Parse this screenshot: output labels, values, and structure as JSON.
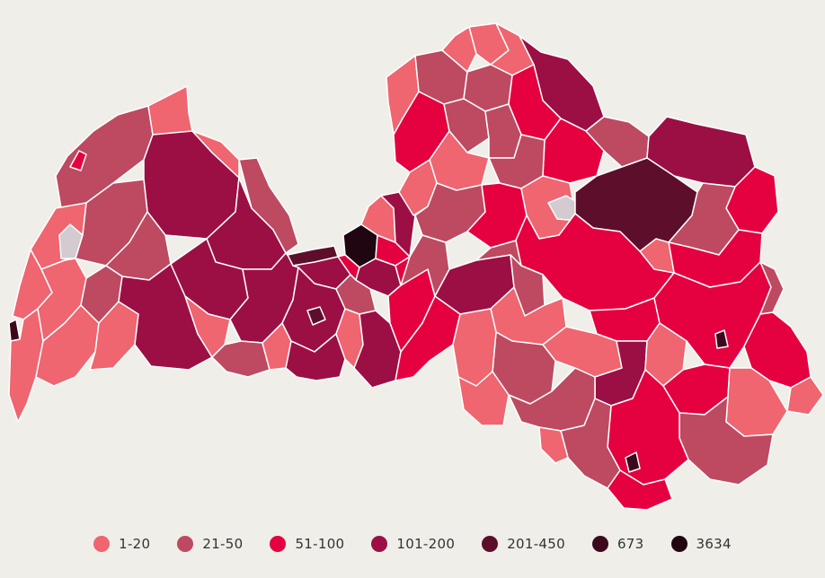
{
  "legend": {
    "items": [
      {
        "label": "1-20",
        "color": "#ef6570"
      },
      {
        "label": "21-50",
        "color": "#bd4a61"
      },
      {
        "label": "51-100",
        "color": "#e5003f"
      },
      {
        "label": "101-200",
        "color": "#9c0f44"
      },
      {
        "label": "201-450",
        "color": "#5d0e2b"
      },
      {
        "label": "673",
        "color": "#3d0a1d"
      },
      {
        "label": "3634",
        "color": "#200611"
      }
    ]
  },
  "colors": {
    "background": "#efeee8",
    "border": "#ffffff",
    "no_data": "#d3cbcf"
  }
}
